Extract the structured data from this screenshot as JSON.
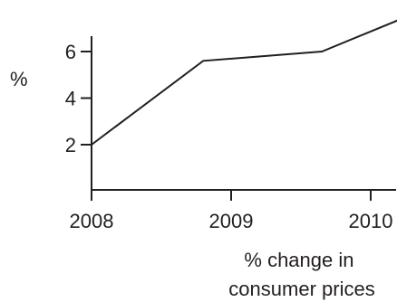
{
  "chart_data": {
    "type": "line",
    "title": "",
    "ylabel": "%",
    "xlabel": "% change in consumer prices",
    "xlabel_lines": [
      "% change in",
      "consumer prices"
    ],
    "x_ticks": [
      2008,
      2009,
      2010
    ],
    "y_ticks": [
      2,
      4,
      6
    ],
    "xlim": [
      2008,
      2010.35
    ],
    "ylim": [
      0,
      6.8
    ],
    "series": [
      {
        "x": [
          2008,
          2008.8,
          2009.65,
          2010.3
        ],
        "y": [
          2.0,
          5.6,
          6.0,
          7.6
        ]
      }
    ],
    "grid": false,
    "legend": "none",
    "colors": {
      "line": "#231f20",
      "axis": "#231f20",
      "text": "#231f20"
    }
  }
}
